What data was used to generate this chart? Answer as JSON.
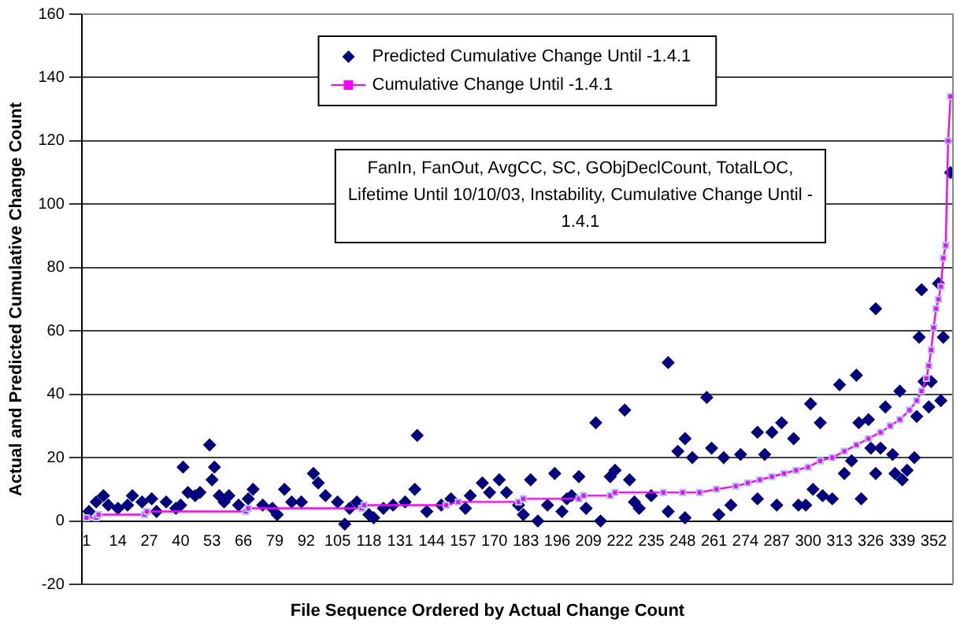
{
  "chart_data": {
    "type": "scatter",
    "xlabel": "File Sequence Ordered by Actual Change Count",
    "ylabel": "Actual and Predicted Cumulative Change Count",
    "annotations": [
      "FanIn, FanOut, AvgCC, SC, GObjDeclCount, TotalLOC, Lifetime Until 10/10/03, Instability, Cumulative Change Until - 1.4.1"
    ],
    "xlim": [
      -1,
      360
    ],
    "xticks": [
      1,
      14,
      27,
      40,
      53,
      66,
      79,
      92,
      105,
      118,
      131,
      144,
      157,
      170,
      183,
      196,
      209,
      222,
      235,
      248,
      261,
      274,
      287,
      300,
      313,
      326,
      339,
      352
    ],
    "ylim": [
      -20,
      160
    ],
    "yticks": [
      -20,
      0,
      20,
      40,
      60,
      80,
      100,
      120,
      140,
      160
    ],
    "grid": "y",
    "legend": "top",
    "series": [
      {
        "name": "Predicted Cumulative Change Until -1.4.1",
        "marker": "diamond",
        "color": "#000080",
        "x": [
          2,
          5,
          8,
          10,
          14,
          18,
          20,
          24,
          28,
          30,
          34,
          38,
          40,
          41,
          43,
          46,
          48,
          52,
          53,
          54,
          56,
          58,
          60,
          64,
          68,
          70,
          74,
          78,
          80,
          83,
          86,
          90,
          95,
          97,
          100,
          105,
          108,
          110,
          113,
          118,
          120,
          124,
          128,
          133,
          137,
          138,
          142,
          148,
          152,
          158,
          160,
          165,
          168,
          172,
          175,
          180,
          182,
          185,
          188,
          192,
          195,
          198,
          200,
          202,
          205,
          208,
          212,
          214,
          218,
          220,
          224,
          226,
          228,
          230,
          235,
          242,
          242,
          246,
          249,
          249,
          252,
          258,
          260,
          263,
          265,
          268,
          272,
          279,
          279,
          282,
          285,
          287,
          289,
          294,
          296,
          299,
          301,
          302,
          305,
          306,
          310,
          313,
          315,
          318,
          320,
          321,
          322,
          325,
          326,
          328,
          328,
          330,
          332,
          335,
          336,
          338,
          339,
          341,
          344,
          345,
          346,
          347,
          348,
          350,
          351,
          354,
          355,
          356,
          359
        ],
        "values": [
          3,
          6,
          8,
          5,
          4,
          5,
          8,
          6,
          7,
          3,
          6,
          4,
          5,
          17,
          9,
          8,
          9,
          24,
          13,
          17,
          8,
          6,
          8,
          5,
          7,
          10,
          5,
          4,
          2,
          10,
          6,
          6,
          15,
          12,
          8,
          6,
          -1,
          4,
          6,
          2,
          1,
          4,
          5,
          6,
          10,
          27,
          3,
          5,
          7,
          4,
          8,
          12,
          9,
          13,
          9,
          5,
          2,
          13,
          0,
          5,
          15,
          3,
          7,
          8,
          14,
          4,
          31,
          0,
          14,
          16,
          35,
          13,
          6,
          4,
          8,
          50,
          3,
          22,
          26,
          1,
          20,
          39,
          23,
          2,
          20,
          5,
          21,
          28,
          7,
          21,
          28,
          5,
          31,
          26,
          5,
          5,
          37,
          10,
          31,
          8,
          7,
          43,
          15,
          19,
          46,
          31,
          7,
          32,
          23,
          67,
          15,
          23,
          36,
          21,
          15,
          41,
          13,
          16,
          20,
          33,
          58,
          73,
          44,
          36,
          44,
          75,
          38,
          58,
          110
        ]
      },
      {
        "name": "Cumulative Change Until -1.4.1",
        "type": "line",
        "marker": "square",
        "line_style": "solid",
        "color": "#ff00ff",
        "x": [
          1,
          5,
          6,
          25,
          26,
          67,
          68,
          115,
          116,
          150,
          155,
          180,
          182,
          205,
          207,
          218,
          220,
          240,
          248,
          255,
          262,
          270,
          275,
          280,
          285,
          290,
          295,
          300,
          305,
          310,
          315,
          320,
          325,
          330,
          334,
          338,
          342,
          345,
          347,
          349,
          350,
          351,
          352,
          353,
          354,
          355,
          356,
          357,
          358,
          359
        ],
        "values": [
          1,
          1,
          2,
          2,
          3,
          3,
          4,
          4,
          5,
          5,
          6,
          6,
          7,
          7,
          8,
          8,
          9,
          9,
          9,
          9,
          10,
          11,
          12,
          13,
          14,
          15,
          16,
          17,
          19,
          20,
          22,
          24,
          26,
          28,
          30,
          32,
          35,
          38,
          41,
          45,
          49,
          54,
          61,
          67,
          70,
          74,
          83,
          87,
          120,
          134
        ]
      }
    ]
  }
}
